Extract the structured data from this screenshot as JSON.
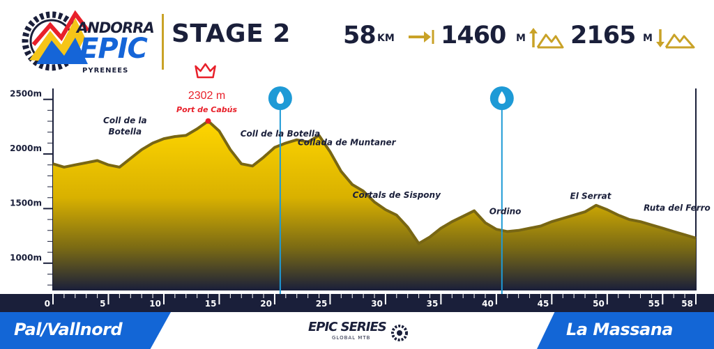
{
  "header": {
    "logo_line1": "ANDORRA",
    "logo_line2": "EPIC",
    "logo_line3": "PYRENEES",
    "stage_title": "STAGE 2",
    "distance": {
      "value": "58",
      "unit": "KM",
      "icon": "distance-arrow-icon"
    },
    "ascent": {
      "value": "1460",
      "unit": "M",
      "icon": "ascent-mountain-icon"
    },
    "descent": {
      "value": "2165",
      "unit": "M",
      "icon": "descent-mountain-icon"
    }
  },
  "colors": {
    "navy": "#1a1f3a",
    "brand_blue": "#1366d6",
    "gold": "#c9a227",
    "fill_top": "#ffd600",
    "fill_bottom": "#1a1f3a",
    "outline": "#786614",
    "peak_red": "#e8202a",
    "water_blue": "#1e9ad6"
  },
  "chart_data": {
    "type": "area",
    "x_unit": "km",
    "y_unit": "m",
    "xlim": [
      0,
      58
    ],
    "ylim": [
      750,
      2600
    ],
    "y_ticks": [
      1000,
      1500,
      2000,
      2500
    ],
    "y_tick_labels": [
      "1000m",
      "1500m",
      "2000m",
      "2500m"
    ],
    "x_ticks": [
      0,
      5,
      10,
      15,
      20,
      25,
      30,
      35,
      40,
      45,
      50,
      55,
      58
    ],
    "x_tick_labels": [
      "0",
      "5",
      "10",
      "15",
      "20",
      "25",
      "30",
      "35",
      "40",
      "45",
      "50",
      "55",
      "58"
    ],
    "grid": false,
    "profile": [
      [
        0,
        1910
      ],
      [
        1,
        1880
      ],
      [
        2,
        1900
      ],
      [
        3,
        1920
      ],
      [
        4,
        1940
      ],
      [
        5,
        1900
      ],
      [
        6,
        1880
      ],
      [
        7,
        1960
      ],
      [
        8,
        2040
      ],
      [
        9,
        2100
      ],
      [
        10,
        2140
      ],
      [
        11,
        2160
      ],
      [
        12,
        2170
      ],
      [
        13,
        2230
      ],
      [
        14,
        2302
      ],
      [
        15,
        2210
      ],
      [
        16,
        2040
      ],
      [
        17,
        1910
      ],
      [
        18,
        1890
      ],
      [
        19,
        1970
      ],
      [
        20,
        2060
      ],
      [
        21,
        2100
      ],
      [
        22,
        2130
      ],
      [
        23,
        2110
      ],
      [
        24,
        2170
      ],
      [
        25,
        2020
      ],
      [
        26,
        1840
      ],
      [
        27,
        1720
      ],
      [
        28,
        1660
      ],
      [
        29,
        1560
      ],
      [
        30,
        1490
      ],
      [
        31,
        1440
      ],
      [
        32,
        1330
      ],
      [
        33,
        1180
      ],
      [
        34,
        1240
      ],
      [
        35,
        1320
      ],
      [
        36,
        1380
      ],
      [
        37,
        1430
      ],
      [
        38,
        1480
      ],
      [
        39,
        1370
      ],
      [
        40,
        1310
      ],
      [
        41,
        1290
      ],
      [
        42,
        1300
      ],
      [
        43,
        1320
      ],
      [
        44,
        1340
      ],
      [
        45,
        1380
      ],
      [
        46,
        1410
      ],
      [
        47,
        1440
      ],
      [
        48,
        1470
      ],
      [
        49,
        1530
      ],
      [
        50,
        1490
      ],
      [
        51,
        1440
      ],
      [
        52,
        1400
      ],
      [
        53,
        1380
      ],
      [
        54,
        1350
      ],
      [
        55,
        1320
      ],
      [
        56,
        1290
      ],
      [
        57,
        1260
      ],
      [
        58,
        1230
      ]
    ],
    "peak": {
      "km": 14,
      "elevation": 2302,
      "value_label": "2302 m",
      "name": "Port de Cabús",
      "icon": "crown-icon"
    },
    "water_stations": [
      {
        "km": 20.5,
        "icon": "water-drop-icon"
      },
      {
        "km": 40.5,
        "icon": "water-drop-icon"
      }
    ],
    "waypoints": [
      {
        "km": 6.5,
        "elevation": 2280,
        "label": "Coll de la Botella",
        "lines": [
          "Coll de la",
          "Botella"
        ]
      },
      {
        "km": 20.5,
        "elevation": 2160,
        "label": "Coll de la Botella",
        "lines": [
          "Coll de la Botella"
        ]
      },
      {
        "km": 26.5,
        "elevation": 2080,
        "label": "Collada de Muntaner",
        "lines": [
          "Collada de Muntaner"
        ]
      },
      {
        "km": 31,
        "elevation": 1600,
        "label": "Cortals de Sispony",
        "lines": [
          "Cortals de Sispony"
        ]
      },
      {
        "km": 40.8,
        "elevation": 1450,
        "label": "Ordino",
        "lines": [
          "Ordino"
        ]
      },
      {
        "km": 48.5,
        "elevation": 1590,
        "label": "El Serrat",
        "lines": [
          "El Serrat"
        ]
      },
      {
        "km": 56.3,
        "elevation": 1480,
        "label": "Ruta del Ferro",
        "lines": [
          "Ruta del Ferro"
        ]
      }
    ]
  },
  "footer": {
    "start": "Pal/Vallnord",
    "end": "La Massana",
    "series_name": "EPIC SERIES",
    "series_sub": "GLOBAL MTB"
  }
}
